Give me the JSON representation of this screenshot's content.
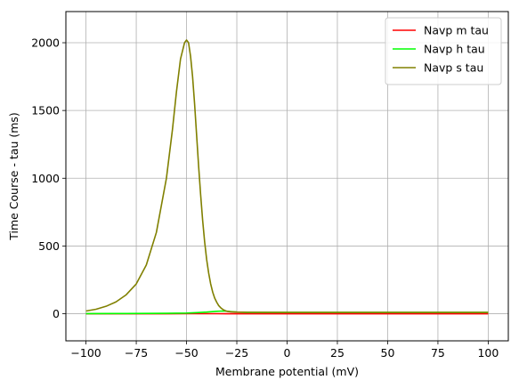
{
  "chart_data": {
    "type": "line",
    "title": "",
    "xlabel": "Membrane potential (mV)",
    "ylabel": "Time Course - tau (ms)",
    "xlim": [
      -110,
      110
    ],
    "ylim": [
      -200,
      2230
    ],
    "xticks": [
      -100,
      -75,
      -50,
      -25,
      0,
      25,
      50,
      75,
      100
    ],
    "yticks": [
      0,
      500,
      1000,
      1500,
      2000
    ],
    "grid": true,
    "legend_position": "top-right",
    "series": [
      {
        "name": "Navp m tau",
        "color": "#ff0000",
        "x": [
          -100,
          -80,
          -60,
          -50,
          -45,
          -40,
          -35,
          -30,
          -25,
          -20,
          0,
          50,
          100
        ],
        "y": [
          0.05,
          0.08,
          0.15,
          0.25,
          0.3,
          0.3,
          0.25,
          0.2,
          0.15,
          0.1,
          0.05,
          0.02,
          0.01
        ]
      },
      {
        "name": "Navp h tau",
        "color": "#00ff00",
        "x": [
          -100,
          -80,
          -60,
          -50,
          -45,
          -40,
          -35,
          -32,
          -30,
          -28,
          -25,
          -20,
          0,
          50,
          100
        ],
        "y": [
          1,
          1.5,
          3,
          5,
          8,
          12,
          18,
          20,
          19,
          16,
          12,
          10,
          10,
          10,
          10
        ]
      },
      {
        "name": "Navp s tau",
        "color": "#808000",
        "x": [
          -100,
          -95,
          -90,
          -85,
          -80,
          -75,
          -70,
          -65,
          -60,
          -57,
          -55,
          -53,
          -51,
          -50,
          -49,
          -48,
          -47,
          -46,
          -45,
          -44,
          -43,
          -42,
          -41,
          -40,
          -39,
          -38,
          -37,
          -36,
          -35,
          -34,
          -33,
          -32,
          -31,
          -30,
          -28,
          -25,
          -20,
          0,
          50,
          100
        ],
        "y": [
          20,
          33,
          55,
          88,
          140,
          220,
          360,
          600,
          1000,
          1360,
          1640,
          1880,
          2000,
          2020,
          2000,
          1900,
          1750,
          1550,
          1320,
          1090,
          880,
          690,
          530,
          400,
          300,
          220,
          160,
          115,
          85,
          60,
          44,
          32,
          24,
          18,
          14,
          12,
          11,
          10,
          10,
          10
        ]
      }
    ]
  }
}
